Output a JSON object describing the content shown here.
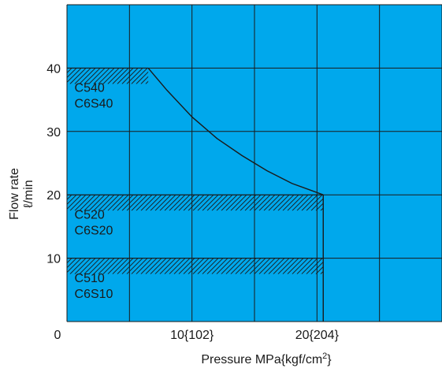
{
  "chart_data": {
    "type": "line",
    "xlabel": "Pressure MPa{kgf/cm",
    "xlabel_sup": "2",
    "xlabel_tail": "}",
    "ylabel": "Flow rate",
    "ylabel_unit": "ℓ/min",
    "xlim": [
      0,
      30
    ],
    "ylim": [
      0,
      50
    ],
    "x_grid": [
      0,
      5,
      10,
      15,
      20,
      25,
      30
    ],
    "y_grid": [
      0,
      10,
      20,
      30,
      40,
      50
    ],
    "x_ticks": [
      {
        "value": 0,
        "label": "0"
      },
      {
        "value": 10,
        "label": "10{102}"
      },
      {
        "value": 20,
        "label": "20{204}"
      }
    ],
    "y_ticks": [
      {
        "value": 10,
        "label": "10"
      },
      {
        "value": 20,
        "label": "20"
      },
      {
        "value": 30,
        "label": "30"
      },
      {
        "value": 40,
        "label": "40"
      }
    ],
    "grid": true,
    "background_color": "#00a8ec",
    "line_color": "#1a1a1a",
    "curve": {
      "x": [
        6.5,
        8,
        10,
        12,
        14,
        16,
        18,
        20.5
      ],
      "y": [
        40,
        36.5,
        32.3,
        28.9,
        26.2,
        23.8,
        21.8,
        20
      ]
    },
    "vertical_drop": {
      "x": [
        20.5,
        20.5
      ],
      "y": [
        20,
        0
      ]
    },
    "hatched_bands": [
      {
        "x0": 0,
        "x1": 6.5,
        "y0": 37.5,
        "y1": 40
      },
      {
        "x0": 0,
        "x1": 20.5,
        "y0": 17.5,
        "y1": 20
      },
      {
        "x0": 0,
        "x1": 20.5,
        "y0": 7.5,
        "y1": 10
      }
    ],
    "series_labels": [
      {
        "lines": [
          "C540",
          "C6S40"
        ],
        "x": 0.6,
        "y": 34
      },
      {
        "lines": [
          "C520",
          "C6S20"
        ],
        "x": 0.6,
        "y": 14
      },
      {
        "lines": [
          "C510",
          "C6S10"
        ],
        "x": 0.6,
        "y": 4
      }
    ]
  }
}
